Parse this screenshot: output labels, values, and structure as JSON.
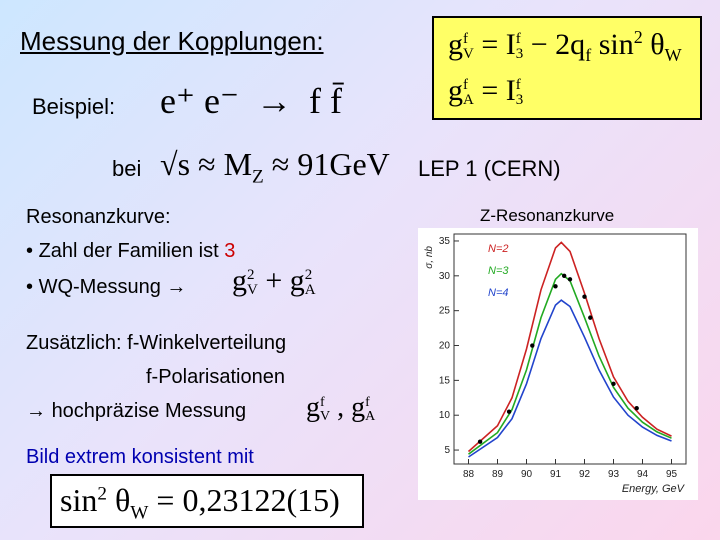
{
  "title": "Messung der Kopplungen:",
  "example": {
    "label": "Beispiel:",
    "reaction_lhs": "e⁺ e⁻",
    "arrow": "→",
    "reaction_rhs": "f f̄"
  },
  "energy": {
    "prefix": "bei",
    "formula": "√s ≈ M",
    "formula_sub": "Z",
    "approx": "≈ 91GeV",
    "experiment": "LEP 1  (CERN)"
  },
  "couplings_box": {
    "line1": {
      "lhs": "g",
      "lhs_sup": "f",
      "lhs_sub": "V",
      "eq": "= I",
      "eq_sup": "f",
      "eq_sub": "3",
      "rest": "− 2q",
      "rest_sub": "f",
      "sin": "sin",
      "sin_sup": "2",
      "theta": "θ",
      "theta_sub": "W"
    },
    "line2": {
      "lhs": "g",
      "lhs_sup": "f",
      "lhs_sub": "A",
      "eq": "= I",
      "eq_sup": "f",
      "eq_sub": "3"
    }
  },
  "resonance": {
    "heading": "Resonanzkurve:",
    "bullet1_text": "Zahl der Familien ist ",
    "bullet1_value": "3",
    "bullet2_text": "WQ-Messung",
    "bullet2_formula": "g",
    "bullet2_sup1": "2",
    "bullet2_sub1": "V",
    "bullet2_plus": "+ g",
    "bullet2_sup2": "2",
    "bullet2_sub2": "A"
  },
  "additional": {
    "line1": "Zusätzlich: f-Winkelverteilung",
    "line2": "f-Polarisationen",
    "line3_text": "hochpräzise Messung",
    "line3_g": "g",
    "line3_sup1": "f",
    "line3_sub1": "V",
    "line3_comma": ", g",
    "line3_sup2": "f",
    "line3_sub2": "A"
  },
  "conclusion": {
    "text": "Bild extrem konsistent mit",
    "formula": "sin",
    "formula_sup": "2",
    "theta": "θ",
    "theta_sub": "W",
    "value": "= 0,23122(15)"
  },
  "chart_data": {
    "type": "line",
    "title": "Z-Resonanzkurve",
    "xlabel": "Energy, GeV",
    "ylabel": "σ, nb",
    "xlim": [
      87.5,
      95.5
    ],
    "ylim": [
      3,
      36
    ],
    "x_ticks": [
      88,
      89,
      90,
      91,
      92,
      93,
      94,
      95
    ],
    "y_ticks": [
      5,
      10,
      15,
      20,
      25,
      30,
      35
    ],
    "grid": false,
    "legend_placement": "left",
    "series": [
      {
        "name": "N=2",
        "color": "#cc2222",
        "x": [
          88.0,
          89.0,
          89.5,
          90.0,
          90.5,
          91.0,
          91.2,
          91.5,
          92.0,
          92.5,
          93.0,
          93.5,
          94.0,
          94.5,
          95.0
        ],
        "y": [
          4.8,
          8.5,
          12.5,
          19.5,
          28.0,
          34.0,
          34.8,
          33.5,
          27.5,
          21.0,
          15.5,
          12.0,
          9.7,
          8.0,
          7.0
        ]
      },
      {
        "name": "N=3",
        "color": "#22aa22",
        "x": [
          88.0,
          89.0,
          89.5,
          90.0,
          90.5,
          91.0,
          91.2,
          91.5,
          92.0,
          92.5,
          93.0,
          93.5,
          94.0,
          94.5,
          95.0
        ],
        "y": [
          4.4,
          7.5,
          10.8,
          16.5,
          24.0,
          29.5,
          30.3,
          29.3,
          24.0,
          18.5,
          14.0,
          11.0,
          9.0,
          7.6,
          6.7
        ]
      },
      {
        "name": "N=4",
        "color": "#2244cc",
        "x": [
          88.0,
          89.0,
          89.5,
          90.0,
          90.5,
          91.0,
          91.2,
          91.5,
          92.0,
          92.5,
          93.0,
          93.5,
          94.0,
          94.5,
          95.0
        ],
        "y": [
          4.0,
          6.8,
          9.5,
          14.5,
          21.0,
          25.8,
          26.5,
          25.6,
          21.2,
          16.5,
          12.6,
          10.0,
          8.3,
          7.1,
          6.3
        ]
      }
    ],
    "measurements": {
      "name": "data",
      "x": [
        88.4,
        89.4,
        90.2,
        91.0,
        91.3,
        91.5,
        92.0,
        92.2,
        93.0,
        93.8
      ],
      "y": [
        6.2,
        10.5,
        20.0,
        28.5,
        30.0,
        29.5,
        27.0,
        24.0,
        14.5,
        11.0
      ]
    }
  }
}
